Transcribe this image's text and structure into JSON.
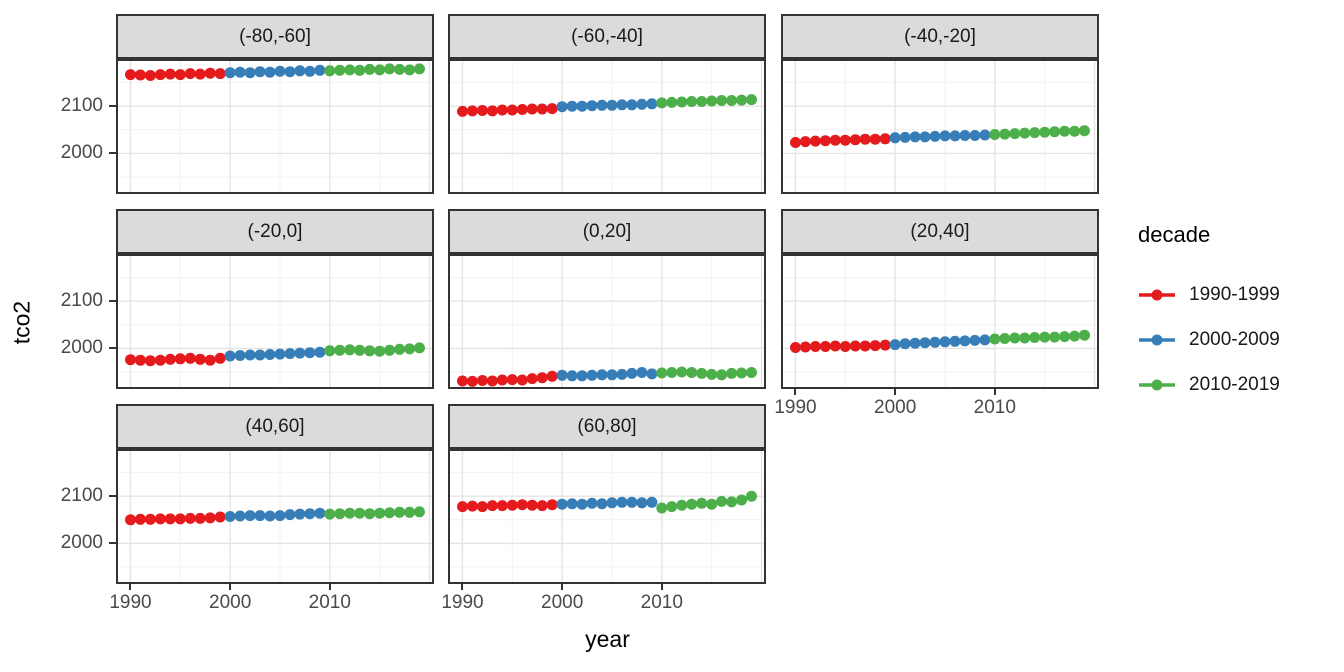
{
  "chart_data": {
    "type": "scatter",
    "title": "",
    "xlabel": "year",
    "ylabel": "tco2",
    "grid": true,
    "legend_position": "right",
    "xlim": [
      1988.55,
      2020.45
    ],
    "ylim": [
      1914,
      2200
    ],
    "x_ticks": [
      1990,
      2000,
      2010
    ],
    "y_ticks": [
      2100,
      2000
    ],
    "x_major": [
      1990,
      2000,
      2010,
      2020
    ],
    "x_minor": [
      1995,
      2005,
      2015
    ],
    "y_major": [
      2100,
      2000
    ],
    "y_minor": [
      1950,
      2050,
      2150
    ],
    "years": [
      1990,
      1991,
      1992,
      1993,
      1994,
      1995,
      1996,
      1997,
      1998,
      1999,
      2000,
      2001,
      2002,
      2003,
      2004,
      2005,
      2006,
      2007,
      2008,
      2009,
      2010,
      2011,
      2012,
      2013,
      2014,
      2015,
      2016,
      2017,
      2018,
      2019
    ],
    "legend": {
      "title": "decade",
      "entries": [
        {
          "label": "1990-1999",
          "color": "#E41A1C",
          "span": [
            1990,
            1999
          ]
        },
        {
          "label": "2000-2009",
          "color": "#377EB8",
          "span": [
            2000,
            2009
          ]
        },
        {
          "label": "2010-2019",
          "color": "#4DAF4A",
          "span": [
            2010,
            2019
          ]
        }
      ]
    },
    "facets": [
      {
        "label": "(-80,-60]",
        "values": [
          2167,
          2166,
          2165,
          2167,
          2168,
          2167,
          2169,
          2168,
          2170,
          2169,
          2171,
          2172,
          2171,
          2173,
          2172,
          2174,
          2173,
          2175,
          2174,
          2176,
          2175,
          2176,
          2177,
          2176,
          2178,
          2177,
          2179,
          2178,
          2177,
          2179
        ]
      },
      {
        "label": "(-60,-40]",
        "values": [
          2089,
          2090,
          2091,
          2090,
          2092,
          2092,
          2093,
          2094,
          2094,
          2095,
          2099,
          2100,
          2100,
          2101,
          2102,
          2102,
          2103,
          2103,
          2104,
          2105,
          2107,
          2108,
          2109,
          2110,
          2110,
          2111,
          2112,
          2112,
          2113,
          2114
        ]
      },
      {
        "label": "(-40,-20]",
        "values": [
          2023,
          2025,
          2026,
          2027,
          2028,
          2028,
          2029,
          2030,
          2030,
          2031,
          2033,
          2034,
          2035,
          2035,
          2036,
          2037,
          2037,
          2038,
          2038,
          2039,
          2040,
          2041,
          2042,
          2043,
          2044,
          2045,
          2046,
          2047,
          2047,
          2048
        ]
      },
      {
        "label": "(-20,0]",
        "values": [
          1976,
          1975,
          1974,
          1975,
          1977,
          1978,
          1979,
          1977,
          1975,
          1979,
          1984,
          1985,
          1986,
          1986,
          1987,
          1988,
          1989,
          1990,
          1991,
          1992,
          1995,
          1996,
          1997,
          1996,
          1995,
          1994,
          1996,
          1998,
          1999,
          2001
        ]
      },
      {
        "label": "(0,20]",
        "values": [
          1931,
          1930,
          1932,
          1931,
          1933,
          1934,
          1933,
          1936,
          1938,
          1941,
          1943,
          1942,
          1942,
          1943,
          1944,
          1944,
          1945,
          1947,
          1949,
          1946,
          1948,
          1949,
          1950,
          1949,
          1947,
          1945,
          1944,
          1947,
          1948,
          1949
        ]
      },
      {
        "label": "(20,40]",
        "values": [
          2002,
          2003,
          2004,
          2004,
          2005,
          2004,
          2005,
          2005,
          2006,
          2007,
          2008,
          2010,
          2011,
          2012,
          2013,
          2014,
          2015,
          2016,
          2017,
          2018,
          2020,
          2021,
          2022,
          2022,
          2023,
          2024,
          2024,
          2025,
          2026,
          2028
        ]
      },
      {
        "label": "(40,60]",
        "values": [
          2050,
          2051,
          2051,
          2052,
          2052,
          2052,
          2053,
          2053,
          2054,
          2056,
          2057,
          2058,
          2059,
          2059,
          2058,
          2059,
          2061,
          2062,
          2063,
          2064,
          2062,
          2063,
          2064,
          2064,
          2063,
          2064,
          2065,
          2066,
          2066,
          2067
        ]
      },
      {
        "label": "(60,80]",
        "values": [
          2078,
          2079,
          2078,
          2080,
          2080,
          2081,
          2082,
          2081,
          2080,
          2082,
          2083,
          2084,
          2083,
          2085,
          2084,
          2086,
          2087,
          2087,
          2086,
          2087,
          2075,
          2078,
          2081,
          2083,
          2085,
          2083,
          2089,
          2088,
          2092,
          2100
        ]
      }
    ]
  },
  "colors": {
    "series_red": "#E41A1C",
    "series_blue": "#377EB8",
    "series_green": "#4DAF4A",
    "strip_background": "#DBDBDB",
    "panel_border": "#333333",
    "grid_major": "#E4E4E4",
    "grid_minor": "#F2F2F2",
    "tick_mark": "#333333",
    "tick_label": "#4A4A4A",
    "title_text": "#000000"
  }
}
